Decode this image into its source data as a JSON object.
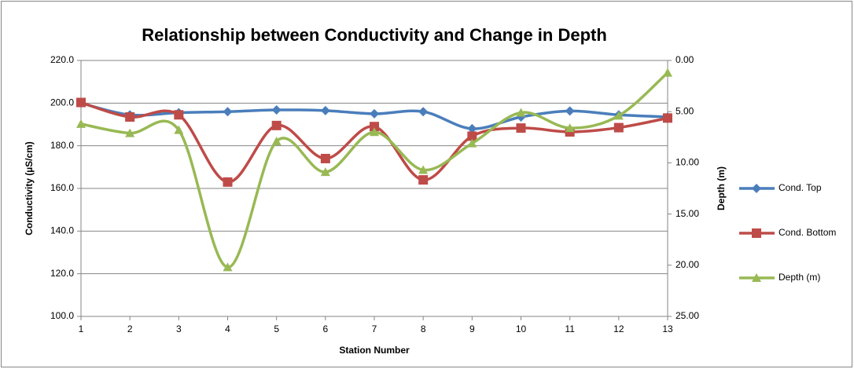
{
  "chart_data": {
    "type": "line",
    "title": "Relationship between Conductivity and Change in Depth",
    "x_label": "Station Number",
    "y_label": "Conductivity (µS/cm)",
    "y2_label": "Depth (m)",
    "x": [
      1,
      2,
      3,
      4,
      5,
      6,
      7,
      8,
      9,
      10,
      11,
      12,
      13
    ],
    "xlim": [
      1,
      13
    ],
    "xticks": [
      1,
      2,
      3,
      4,
      5,
      6,
      7,
      8,
      9,
      10,
      11,
      12,
      13
    ],
    "ylim": [
      100,
      220
    ],
    "yticks": [
      {
        "value": 100,
        "label": "100.0"
      },
      {
        "value": 120,
        "label": "120.0"
      },
      {
        "value": 140,
        "label": "140.0"
      },
      {
        "value": 160,
        "label": "160.0"
      },
      {
        "value": 180,
        "label": "180.0"
      },
      {
        "value": 200,
        "label": "200.0"
      },
      {
        "value": 220,
        "label": "220.0"
      }
    ],
    "y2lim": [
      0,
      25
    ],
    "y2_reversed": true,
    "y2ticks": [
      {
        "value": 0,
        "label": "0.00"
      },
      {
        "value": 5,
        "label": "5.00"
      },
      {
        "value": 10,
        "label": "10.00"
      },
      {
        "value": 15,
        "label": "15.00"
      },
      {
        "value": 20,
        "label": "20.00"
      },
      {
        "value": 25,
        "label": "25.00"
      }
    ],
    "grid": true,
    "smooth": true,
    "legend": "right",
    "series": [
      {
        "name": "Cond. Top",
        "color": "#4a7ebb",
        "marker": "diamond",
        "values": [
          200,
          194.5,
          195.5,
          196,
          196.8,
          196.5,
          195,
          196,
          188,
          193.5,
          196.3,
          194.5,
          193.5
        ]
      },
      {
        "name": "Cond. Bottom",
        "color": "#be4b48",
        "marker": "square",
        "values": [
          200.3,
          193.5,
          194.5,
          163,
          189.5,
          174,
          189,
          164,
          184.5,
          188.3,
          186.5,
          188.5,
          193
        ]
      },
      {
        "name": "Depth (m)",
        "color": "#98b954",
        "marker": "triangle",
        "axis": "y2",
        "values": [
          6.2,
          7.1,
          6.8,
          20.2,
          7.9,
          10.9,
          7.0,
          10.7,
          8.1,
          5.1,
          6.6,
          5.4,
          1.2
        ]
      }
    ]
  }
}
